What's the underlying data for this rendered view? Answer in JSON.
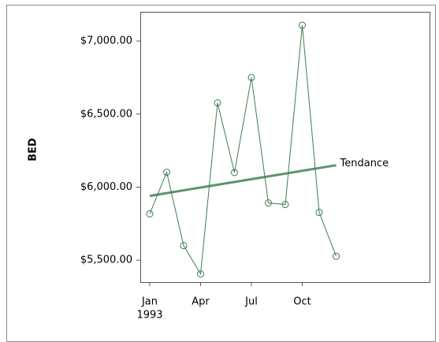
{
  "chart_data": {
    "type": "line",
    "y_label": "BED",
    "categories": [
      "Jan",
      null,
      null,
      "Apr",
      null,
      null,
      "Jul",
      null,
      null,
      "Oct",
      null,
      null
    ],
    "x_year": "1993",
    "series": [
      {
        "name": "BED",
        "color": "#3f7d50",
        "values": [
          5817,
          6102,
          5600,
          5406,
          6577,
          6100,
          6750,
          5892,
          5881,
          7108,
          5827,
          5527
        ]
      }
    ],
    "trend": {
      "name": "Tendance",
      "color": "#5b9470",
      "values": [
        5940,
        6150
      ]
    },
    "ylim": [
      5350,
      7200
    ],
    "yticks": [
      {
        "value": 5500,
        "label": "$5,500.00"
      },
      {
        "value": 6000,
        "label": "$6,000.00"
      },
      {
        "value": 6500,
        "label": "$6,500.00"
      },
      {
        "value": 7000,
        "label": "$7,000.00"
      }
    ]
  }
}
